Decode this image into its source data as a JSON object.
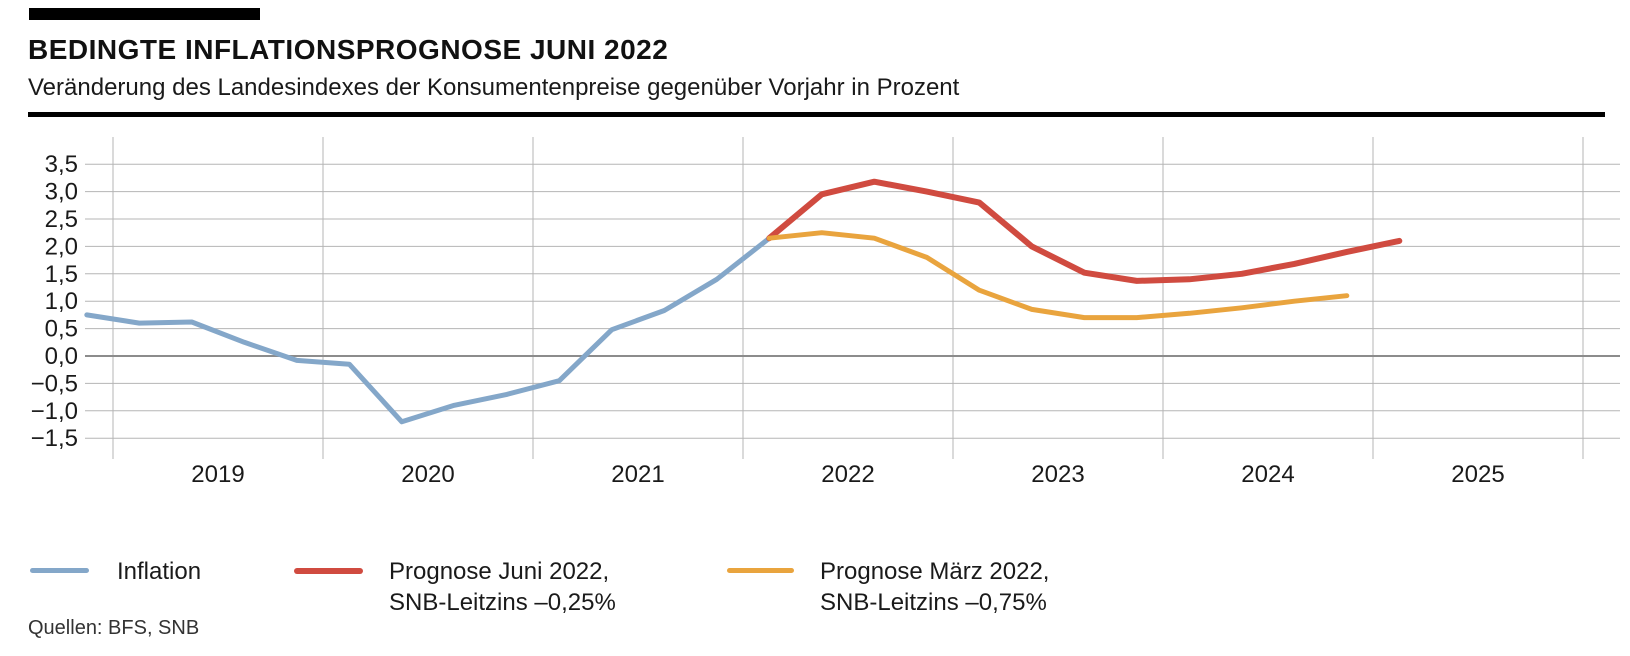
{
  "header": {
    "title": "BEDINGTE INFLATIONSPROGNOSE JUNI 2022",
    "subtitle": "Veränderung des Landesindexes der Konsumentenpreise gegenüber Vorjahr in Prozent"
  },
  "source": "Quellen: BFS, SNB",
  "colors": {
    "inflation": "#84a7c9",
    "prognose_juni": "#d04b40",
    "prognose_maerz": "#e9a43e",
    "grid": "#b5b5b5",
    "zero_line": "#8c8c8c",
    "text": "#1a1a1a",
    "rule": "#000000"
  },
  "legend": {
    "items": [
      {
        "key": "inflation",
        "lines": [
          "Inflation"
        ]
      },
      {
        "key": "prognose_juni",
        "lines": [
          "Prognose Juni 2022,",
          "SNB-Leitzins –0,25%"
        ]
      },
      {
        "key": "prognose_maerz",
        "lines": [
          "Prognose März 2022,",
          "SNB-Leitzins –0,75%"
        ]
      }
    ]
  },
  "chart_data": {
    "type": "line",
    "title": "Bedingte Inflationsprognose Juni 2022",
    "ylabel": "Veränderung des Landesindexes der Konsumentenpreise gegenüber Vorjahr in Prozent",
    "ylim": [
      -1.5,
      3.5
    ],
    "xlim": [
      2018.85,
      2026.0
    ],
    "grid": true,
    "legend_position": "bottom",
    "y_ticks": [
      {
        "value": 3.5,
        "label": "3,5"
      },
      {
        "value": 3.0,
        "label": "3,0"
      },
      {
        "value": 2.5,
        "label": "2,5"
      },
      {
        "value": 2.0,
        "label": "2,0"
      },
      {
        "value": 1.5,
        "label": "1,5"
      },
      {
        "value": 1.0,
        "label": "1,0"
      },
      {
        "value": 0.5,
        "label": "0,5"
      },
      {
        "value": 0.0,
        "label": "0,0"
      },
      {
        "value": -0.5,
        "label": "−0,5"
      },
      {
        "value": -1.0,
        "label": "−1,0"
      },
      {
        "value": -1.5,
        "label": "−1,5"
      }
    ],
    "year_gridlines": [
      2019,
      2020,
      2021,
      2022,
      2023,
      2024,
      2025,
      2026
    ],
    "x_tick_labels": [
      {
        "year": 2019,
        "label": "2019"
      },
      {
        "year": 2020,
        "label": "2020"
      },
      {
        "year": 2021,
        "label": "2021"
      },
      {
        "year": 2022,
        "label": "2022"
      },
      {
        "year": 2023,
        "label": "2023"
      },
      {
        "year": 2024,
        "label": "2024"
      },
      {
        "year": 2025,
        "label": "2025"
      }
    ],
    "series": [
      {
        "name": "Inflation",
        "color_key": "inflation",
        "quarters": [
          "2018Q4",
          "2019Q1",
          "2019Q2",
          "2019Q3",
          "2019Q4",
          "2020Q1",
          "2020Q2",
          "2020Q3",
          "2020Q4",
          "2021Q1",
          "2021Q2",
          "2021Q3",
          "2021Q4",
          "2022Q1"
        ],
        "x": [
          2018.875,
          2019.125,
          2019.375,
          2019.625,
          2019.875,
          2020.125,
          2020.375,
          2020.625,
          2020.875,
          2021.125,
          2021.375,
          2021.625,
          2021.875,
          2022.125
        ],
        "values": [
          0.75,
          0.6,
          0.62,
          0.25,
          -0.08,
          -0.15,
          -1.2,
          -0.9,
          -0.7,
          -0.45,
          0.48,
          0.83,
          1.4,
          2.15
        ]
      },
      {
        "name": "Prognose Juni 2022, SNB-Leitzins –0,25%",
        "color_key": "prognose_juni",
        "quarters": [
          "2022Q1",
          "2022Q2",
          "2022Q3",
          "2022Q4",
          "2023Q1",
          "2023Q2",
          "2023Q3",
          "2023Q4",
          "2024Q1",
          "2024Q2",
          "2024Q3",
          "2024Q4",
          "2025Q1"
        ],
        "x": [
          2022.125,
          2022.375,
          2022.625,
          2022.875,
          2023.125,
          2023.375,
          2023.625,
          2023.875,
          2024.125,
          2024.375,
          2024.625,
          2024.875,
          2025.125
        ],
        "values": [
          2.15,
          2.95,
          3.18,
          3.0,
          2.8,
          2.0,
          1.52,
          1.37,
          1.4,
          1.5,
          1.68,
          1.9,
          2.1
        ]
      },
      {
        "name": "Prognose März 2022, SNB-Leitzins –0,75%",
        "color_key": "prognose_maerz",
        "quarters": [
          "2022Q1",
          "2022Q2",
          "2022Q3",
          "2022Q4",
          "2023Q1",
          "2023Q2",
          "2023Q3",
          "2023Q4",
          "2024Q1",
          "2024Q2",
          "2024Q3",
          "2024Q4"
        ],
        "x": [
          2022.125,
          2022.375,
          2022.625,
          2022.875,
          2023.125,
          2023.375,
          2023.625,
          2023.875,
          2024.125,
          2024.375,
          2024.625,
          2024.875
        ],
        "values": [
          2.15,
          2.25,
          2.15,
          1.8,
          1.2,
          0.85,
          0.7,
          0.7,
          0.78,
          0.88,
          1.0,
          1.1
        ]
      }
    ]
  }
}
